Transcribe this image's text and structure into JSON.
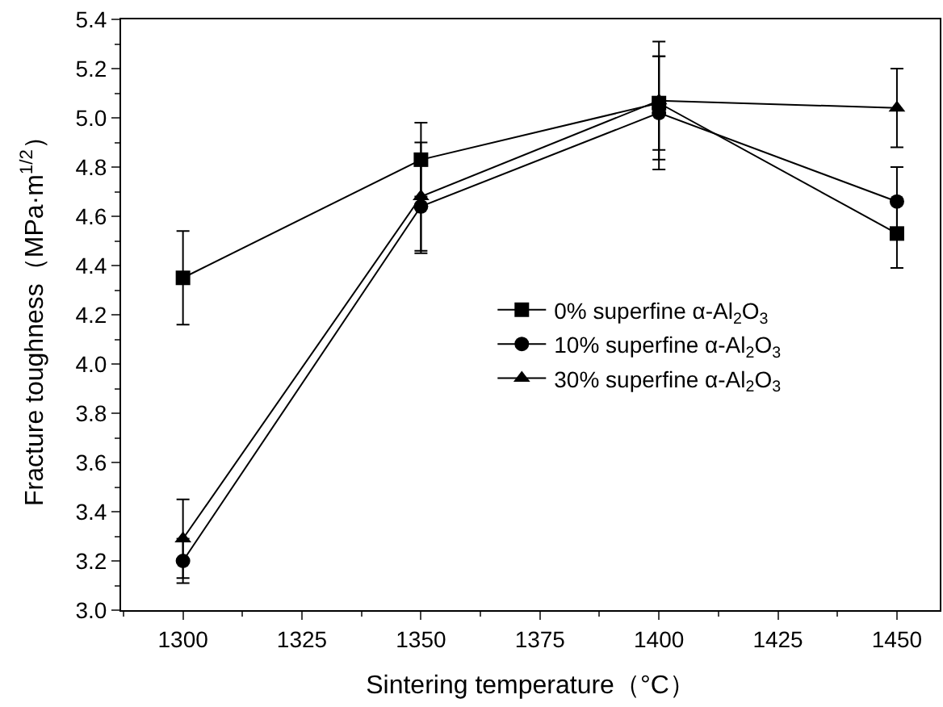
{
  "chart_data": {
    "type": "line",
    "xlabel": "Sintering temperature（°C）",
    "ylabel": "Fracture toughness（MPa·m$^{1/2}$）",
    "x": [
      1300,
      1350,
      1400,
      1450
    ],
    "series": [
      {
        "name": "0% superfine α-Al$_{2}$O$_{3}$",
        "color": "#000000",
        "marker": "square",
        "values": [
          4.35,
          4.83,
          5.06,
          4.53
        ],
        "errors": [
          0.19,
          0.15,
          0.19,
          0.14
        ]
      },
      {
        "name": "10% superfine α-Al$_{2}$O$_{3}$",
        "color": "#000000",
        "marker": "circle",
        "values": [
          3.2,
          4.64,
          5.02,
          4.66
        ],
        "errors": [
          0.09,
          0.19,
          0.23,
          0.14
        ]
      },
      {
        "name": "30% superfine α-Al$_{2}$O$_{3}$",
        "color": "#000000",
        "marker": "triangle",
        "values": [
          3.29,
          4.68,
          5.07,
          5.04
        ],
        "errors": [
          0.16,
          0.22,
          0.24,
          0.16
        ]
      }
    ],
    "xlim": [
      1287,
      1459
    ],
    "xticks": [
      1300,
      1325,
      1350,
      1375,
      1400,
      1425,
      1450
    ],
    "ylim": [
      3.0,
      5.4
    ],
    "yticks": [
      {
        "value": 3.0,
        "label": "3.0"
      },
      3.2,
      3.4,
      3.6,
      3.8,
      {
        "value": 4.0,
        "label": "4.0"
      },
      4.2,
      4.4,
      4.6,
      4.8,
      {
        "value": 5.0,
        "label": "5.0"
      },
      5.2,
      5.4
    ],
    "legend": "right",
    "line_style": "solid"
  }
}
